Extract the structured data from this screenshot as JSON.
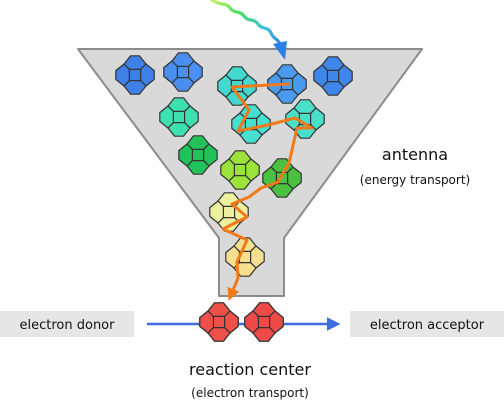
{
  "labels": {
    "antenna_title": "antenna",
    "antenna_sub": "(energy transport)",
    "reaction_title": "reaction center",
    "reaction_sub": "(electron transport)",
    "donor": "electron donor",
    "acceptor": "electron acceptor"
  },
  "colors": {
    "funnel_fill": "#d9d9d9",
    "funnel_stroke": "#8c8c8c",
    "energy_path": "#f07a1a",
    "electron_arrow": "#3d6fe0",
    "label_box": "#e6e6e6"
  },
  "chromophores": [
    {
      "id": "blue-1",
      "color": "#3f7fe8"
    },
    {
      "id": "blue-2",
      "color": "#4a8ff0"
    },
    {
      "id": "cyan-1",
      "color": "#43d8d0"
    },
    {
      "id": "blue-3",
      "color": "#4a9bf0"
    },
    {
      "id": "blue-4",
      "color": "#3f86ea"
    },
    {
      "id": "cyan-2",
      "color": "#3fe0b0"
    },
    {
      "id": "cyan-3",
      "color": "#45e0d0"
    },
    {
      "id": "cyan-4",
      "color": "#4adfc8"
    },
    {
      "id": "green-1",
      "color": "#22c25a"
    },
    {
      "id": "lime-1",
      "color": "#9be23a"
    },
    {
      "id": "green-2",
      "color": "#4cc040"
    },
    {
      "id": "yellow-1",
      "color": "#ecf0a0"
    },
    {
      "id": "yellow-2",
      "color": "#f5e08f"
    },
    {
      "id": "red-1",
      "color": "#f0504a"
    },
    {
      "id": "red-2",
      "color": "#ee4a48"
    }
  ]
}
